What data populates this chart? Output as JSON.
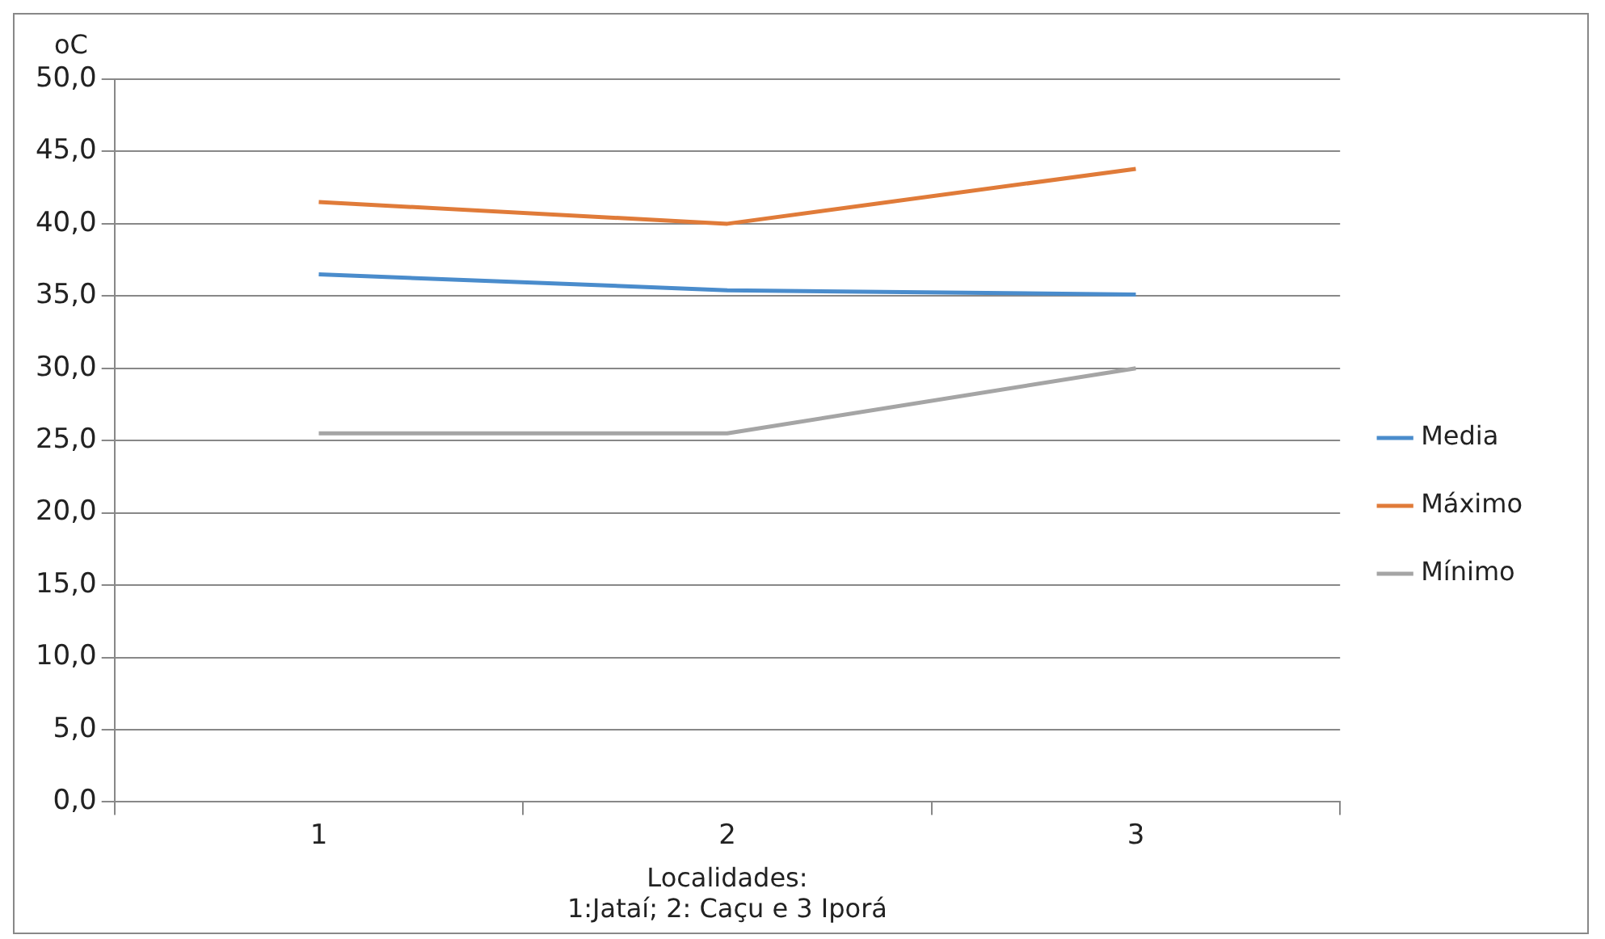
{
  "chart_data": {
    "type": "line",
    "xlabel": "Localidades:\n1:Jataí; 2: Caçu e 3 Iporá",
    "ylabel": "oC",
    "categories": [
      "1",
      "2",
      "3"
    ],
    "series": [
      {
        "name": "Media",
        "color": "#4a8ccc",
        "values": [
          36.5,
          35.4,
          35.1
        ]
      },
      {
        "name": "Máximo",
        "color": "#e07b39",
        "values": [
          41.5,
          40.0,
          43.8
        ]
      },
      {
        "name": "Mínimo",
        "color": "#a5a5a5",
        "values": [
          25.5,
          25.5,
          30.0
        ]
      }
    ],
    "ylim": [
      0,
      50
    ],
    "yticks": [
      {
        "value": 0,
        "label": "0,0"
      },
      {
        "value": 5,
        "label": "5,0"
      },
      {
        "value": 10,
        "label": "10,0"
      },
      {
        "value": 15,
        "label": "15,0"
      },
      {
        "value": 20,
        "label": "20,0"
      },
      {
        "value": 25,
        "label": "25,0"
      },
      {
        "value": 30,
        "label": "30,0"
      },
      {
        "value": 35,
        "label": "35,0"
      },
      {
        "value": 40,
        "label": "40,0"
      },
      {
        "value": 45,
        "label": "45,0"
      },
      {
        "value": 50,
        "label": "50,0"
      }
    ],
    "grid": "y",
    "legend": "right",
    "marker": "none",
    "line_style": "solid"
  }
}
